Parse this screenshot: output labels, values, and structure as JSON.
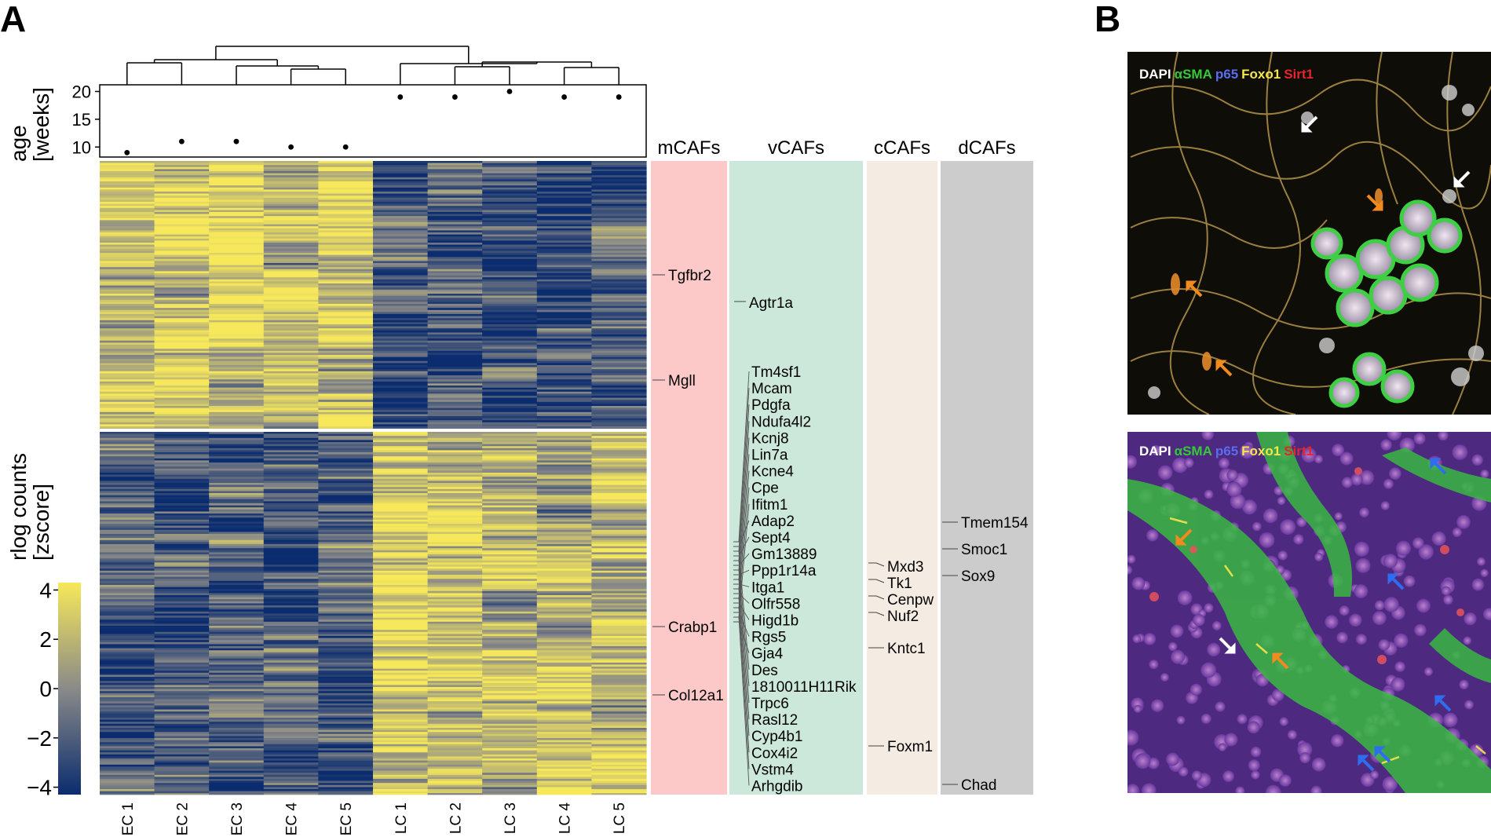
{
  "panels": [
    {
      "letter": "A"
    },
    {
      "letter": "B"
    }
  ],
  "chart_data": {
    "type": "heatmap",
    "samples": [
      "EC 1",
      "EC 2",
      "EC 3",
      "EC 4",
      "EC 5",
      "LC 1",
      "LC 2",
      "LC 3",
      "LC 4",
      "LC 5"
    ],
    "dendrogram": {
      "merges": [
        [
          "EC 1",
          "EC 2"
        ],
        [
          "EC 4",
          "EC 5"
        ],
        [
          "EC 3",
          "EC 4+EC 5"
        ],
        [
          "EC 1+EC 2",
          "EC 3+EC 4+EC 5"
        ],
        [
          "LC 2",
          "LC 3"
        ],
        [
          "LC 4",
          "LC 5"
        ],
        [
          "LC 2+LC 3",
          "LC 4+LC 5"
        ],
        [
          "LC 1",
          "LC 2+LC 3+LC 4+LC 5"
        ],
        [
          "EC",
          "LC"
        ]
      ]
    },
    "age_track": {
      "ylabel": [
        "age",
        "[weeks]"
      ],
      "yticks": [
        10,
        15,
        20
      ],
      "ylim": [
        8.2,
        21.2
      ],
      "values": [
        9,
        11,
        11,
        10,
        10,
        19,
        19,
        20,
        19,
        19
      ]
    },
    "heatmap": {
      "ylabel": [
        "rlog counts",
        "[zscore]"
      ],
      "blocks": [
        {
          "name": "up in EC",
          "pattern": [
            0.55,
            0.8,
            0.75,
            0.6,
            0.7,
            -0.7,
            -0.55,
            -0.6,
            -0.85,
            -0.75
          ]
        },
        {
          "name": "up in LC",
          "pattern": [
            -0.6,
            -0.45,
            -0.55,
            -0.45,
            -0.5,
            0.8,
            0.65,
            0.45,
            0.55,
            0.6
          ]
        }
      ]
    },
    "colorbar": {
      "ticks": [
        4,
        2,
        0,
        -2,
        -4
      ],
      "tick_labels": [
        "4",
        "2",
        "0",
        "−2",
        "−4"
      ],
      "range": [
        -4.3,
        4.3
      ],
      "colors": {
        "low": "#0b2c6e",
        "mid": "#8a8a88",
        "high": "#f6e85a"
      }
    },
    "gene_columns": [
      {
        "title": "mCAFs",
        "color": "#fdc8c8",
        "genes": [
          "Tgfbr2",
          "Mgll",
          "Crabp1",
          "Col12a1"
        ]
      },
      {
        "title": "vCAFs",
        "color": "#cbe8db",
        "genes": [
          "Agtr1a",
          "Tm4sf1",
          "Mcam",
          "Pdgfa",
          "Ndufa4l2",
          "Kcnj8",
          "Lin7a",
          "Kcne4",
          "Cpe",
          "Ifitm1",
          "Adap2",
          "Sept4",
          "Gm13889",
          "Ppp1r14a",
          "Itga1",
          "Olfr558",
          "Higd1b",
          "Rgs5",
          "Gja4",
          "Des",
          "1810011H11Rik",
          "Trpc6",
          "Rasl12",
          "Cyp4b1",
          "Cox4i2",
          "Vstm4",
          "Arhgdib"
        ]
      },
      {
        "title": "cCAFs",
        "color": "#f4ebe2",
        "genes": [
          "Mxd3",
          "Tk1",
          "Cenpw",
          "Nuf2",
          "Kntc1",
          "Foxm1"
        ]
      },
      {
        "title": "dCAFs",
        "color": "#cccccc",
        "genes": [
          "Tmem154",
          "Smoc1",
          "Sox9",
          "Chad"
        ]
      }
    ]
  },
  "micrographs": [
    {
      "legend": [
        {
          "text": "DAPI",
          "color": "#ffffff"
        },
        {
          "text": "αSMA",
          "color": "#35c93a"
        },
        {
          "text": "p65",
          "color": "#5a6cf0"
        },
        {
          "text": "Foxo1",
          "color": "#f5e64a"
        },
        {
          "text": "Sirt1",
          "color": "#e8232a"
        }
      ],
      "arrows": [
        {
          "color": "#ffffff",
          "direction": "down-left"
        },
        {
          "color": "#ffffff",
          "direction": "down-left"
        },
        {
          "color": "#f28a1e",
          "direction": "down-right"
        },
        {
          "color": "#f28a1e",
          "direction": "up-left"
        },
        {
          "color": "#f28a1e",
          "direction": "up-left"
        }
      ]
    },
    {
      "legend": [
        {
          "text": "DAPI",
          "color": "#ffffff"
        },
        {
          "text": "αSMA",
          "color": "#35c93a"
        },
        {
          "text": "p65",
          "color": "#5a6cf0"
        },
        {
          "text": "Foxo1",
          "color": "#f5e64a"
        },
        {
          "text": "Sirt1",
          "color": "#e8232a"
        }
      ],
      "arrows": [
        {
          "color": "#2f6df0",
          "direction": "up-left"
        },
        {
          "color": "#f28a1e",
          "direction": "down-left"
        },
        {
          "color": "#2f6df0",
          "direction": "up-left"
        },
        {
          "color": "#ffffff",
          "direction": "down-right"
        },
        {
          "color": "#f28a1e",
          "direction": "up-left"
        },
        {
          "color": "#2f6df0",
          "direction": "up-left"
        },
        {
          "color": "#2f6df0",
          "direction": "up-left"
        },
        {
          "color": "#2f6df0",
          "direction": "up-left"
        }
      ]
    }
  ]
}
